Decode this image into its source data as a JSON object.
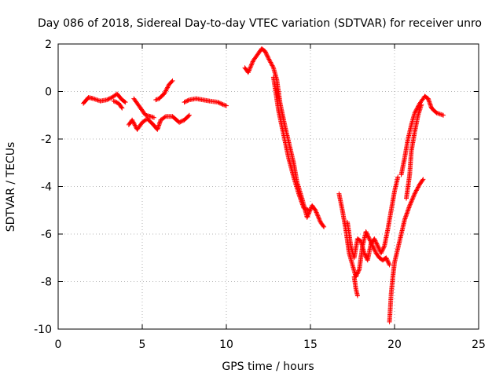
{
  "chart_data": {
    "type": "scatter",
    "title": "Day 086 of 2018, Sidereal Day-to-day VTEC variation (SDTVAR) for receiver unro",
    "xlabel": "GPS time / hours",
    "ylabel": "SDTVAR / TECUs",
    "xlim": [
      0,
      25
    ],
    "ylim": [
      -10,
      2
    ],
    "xticks": [
      0,
      5,
      10,
      15,
      20,
      25
    ],
    "yticks": [
      -10,
      -8,
      -6,
      -4,
      -2,
      0,
      2
    ],
    "grid": true,
    "marker": "+",
    "colors": {
      "series": "#ff0000",
      "grid": "#a0a0a0",
      "axis": "#000000"
    },
    "series": [
      {
        "name": "seg-a-upper",
        "points": [
          [
            1.5,
            -0.5
          ],
          [
            1.8,
            -0.25
          ],
          [
            2.1,
            -0.3
          ],
          [
            2.5,
            -0.4
          ],
          [
            2.9,
            -0.35
          ],
          [
            3.2,
            -0.25
          ],
          [
            3.5,
            -0.1
          ],
          [
            3.8,
            -0.35
          ],
          [
            4.0,
            -0.45
          ]
        ]
      },
      {
        "name": "seg-a-lower",
        "points": [
          [
            3.3,
            -0.4
          ],
          [
            3.6,
            -0.5
          ],
          [
            3.8,
            -0.7
          ]
        ]
      },
      {
        "name": "seg-b",
        "points": [
          [
            4.2,
            -1.4
          ],
          [
            4.4,
            -1.2
          ],
          [
            4.7,
            -1.6
          ],
          [
            5.0,
            -1.3
          ],
          [
            5.3,
            -1.15
          ],
          [
            5.6,
            -1.35
          ],
          [
            5.9,
            -1.6
          ],
          [
            6.1,
            -1.2
          ],
          [
            6.4,
            -1.05
          ],
          [
            6.8,
            -1.05
          ],
          [
            7.2,
            -1.3
          ],
          [
            7.5,
            -1.2
          ],
          [
            7.8,
            -1.0
          ]
        ]
      },
      {
        "name": "seg-c",
        "points": [
          [
            4.5,
            -0.3
          ],
          [
            4.8,
            -0.6
          ],
          [
            5.0,
            -0.8
          ],
          [
            5.2,
            -1.0
          ],
          [
            5.5,
            -1.05
          ],
          [
            5.7,
            -1.1
          ]
        ]
      },
      {
        "name": "seg-d",
        "points": [
          [
            5.8,
            -0.35
          ],
          [
            6.0,
            -0.3
          ],
          [
            6.3,
            -0.1
          ],
          [
            6.6,
            0.3
          ],
          [
            6.8,
            0.45
          ]
        ]
      },
      {
        "name": "seg-e",
        "points": [
          [
            7.5,
            -0.45
          ],
          [
            7.8,
            -0.35
          ],
          [
            8.2,
            -0.3
          ],
          [
            8.6,
            -0.35
          ],
          [
            9.0,
            -0.4
          ],
          [
            9.5,
            -0.45
          ],
          [
            9.8,
            -0.55
          ],
          [
            10.0,
            -0.6
          ]
        ]
      },
      {
        "name": "seg-f",
        "points": [
          [
            11.1,
            1.0
          ],
          [
            11.3,
            0.8
          ],
          [
            11.6,
            1.3
          ],
          [
            11.9,
            1.6
          ],
          [
            12.1,
            1.8
          ],
          [
            12.3,
            1.7
          ],
          [
            12.5,
            1.4
          ],
          [
            12.8,
            1.0
          ],
          [
            13.0,
            0.5
          ],
          [
            13.2,
            -0.5
          ],
          [
            13.5,
            -1.5
          ],
          [
            13.8,
            -2.4
          ],
          [
            14.0,
            -3.0
          ],
          [
            14.2,
            -3.8
          ],
          [
            14.5,
            -4.5
          ],
          [
            14.8,
            -5.3
          ],
          [
            15.1,
            -4.8
          ],
          [
            15.3,
            -5.0
          ],
          [
            15.6,
            -5.5
          ],
          [
            15.8,
            -5.7
          ]
        ]
      },
      {
        "name": "seg-f-inner",
        "points": [
          [
            12.8,
            0.6
          ],
          [
            13.1,
            -0.8
          ],
          [
            13.4,
            -1.8
          ],
          [
            13.7,
            -2.8
          ],
          [
            14.0,
            -3.6
          ],
          [
            14.3,
            -4.3
          ],
          [
            14.6,
            -4.9
          ],
          [
            14.9,
            -5.0
          ]
        ]
      },
      {
        "name": "seg-g",
        "points": [
          [
            16.7,
            -4.3
          ],
          [
            16.9,
            -5.0
          ],
          [
            17.1,
            -5.8
          ],
          [
            17.3,
            -6.8
          ],
          [
            17.5,
            -7.3
          ],
          [
            17.7,
            -7.8
          ],
          [
            17.9,
            -7.5
          ],
          [
            18.1,
            -6.5
          ],
          [
            18.3,
            -5.9
          ],
          [
            18.5,
            -6.2
          ],
          [
            18.7,
            -6.5
          ],
          [
            18.9,
            -6.8
          ],
          [
            19.1,
            -7.0
          ],
          [
            19.3,
            -7.1
          ],
          [
            19.5,
            -7.0
          ],
          [
            19.7,
            -7.3
          ]
        ]
      },
      {
        "name": "seg-g-dip",
        "points": [
          [
            17.6,
            -7.8
          ],
          [
            17.7,
            -8.3
          ],
          [
            17.8,
            -8.6
          ]
        ]
      },
      {
        "name": "seg-h",
        "points": [
          [
            17.2,
            -5.5
          ],
          [
            17.4,
            -6.5
          ],
          [
            17.6,
            -7.0
          ],
          [
            17.8,
            -6.2
          ],
          [
            18.0,
            -6.3
          ],
          [
            18.2,
            -6.8
          ],
          [
            18.4,
            -7.1
          ],
          [
            18.6,
            -6.4
          ],
          [
            18.8,
            -6.2
          ],
          [
            19.0,
            -6.5
          ],
          [
            19.2,
            -6.8
          ],
          [
            19.4,
            -6.5
          ],
          [
            19.6,
            -5.8
          ],
          [
            19.8,
            -5.0
          ],
          [
            20.0,
            -4.2
          ],
          [
            20.2,
            -3.6
          ]
        ]
      },
      {
        "name": "seg-i",
        "points": [
          [
            19.7,
            -9.7
          ],
          [
            19.8,
            -8.5
          ],
          [
            19.9,
            -7.8
          ],
          [
            20.0,
            -7.2
          ],
          [
            20.2,
            -6.6
          ],
          [
            20.4,
            -6.0
          ],
          [
            20.6,
            -5.4
          ],
          [
            20.9,
            -4.8
          ],
          [
            21.2,
            -4.3
          ],
          [
            21.5,
            -3.9
          ],
          [
            21.7,
            -3.7
          ]
        ]
      },
      {
        "name": "seg-j",
        "points": [
          [
            20.4,
            -3.5
          ],
          [
            20.6,
            -2.8
          ],
          [
            20.8,
            -2.0
          ],
          [
            21.0,
            -1.4
          ],
          [
            21.2,
            -0.9
          ],
          [
            21.5,
            -0.5
          ],
          [
            21.8,
            -0.2
          ],
          [
            22.0,
            -0.3
          ],
          [
            22.2,
            -0.7
          ],
          [
            22.5,
            -0.9
          ],
          [
            22.9,
            -1.0
          ]
        ]
      },
      {
        "name": "seg-j-inner",
        "points": [
          [
            20.7,
            -4.5
          ],
          [
            20.9,
            -3.5
          ],
          [
            21.0,
            -2.5
          ],
          [
            21.2,
            -1.7
          ],
          [
            21.4,
            -1.0
          ],
          [
            21.6,
            -0.55
          ]
        ]
      }
    ]
  }
}
